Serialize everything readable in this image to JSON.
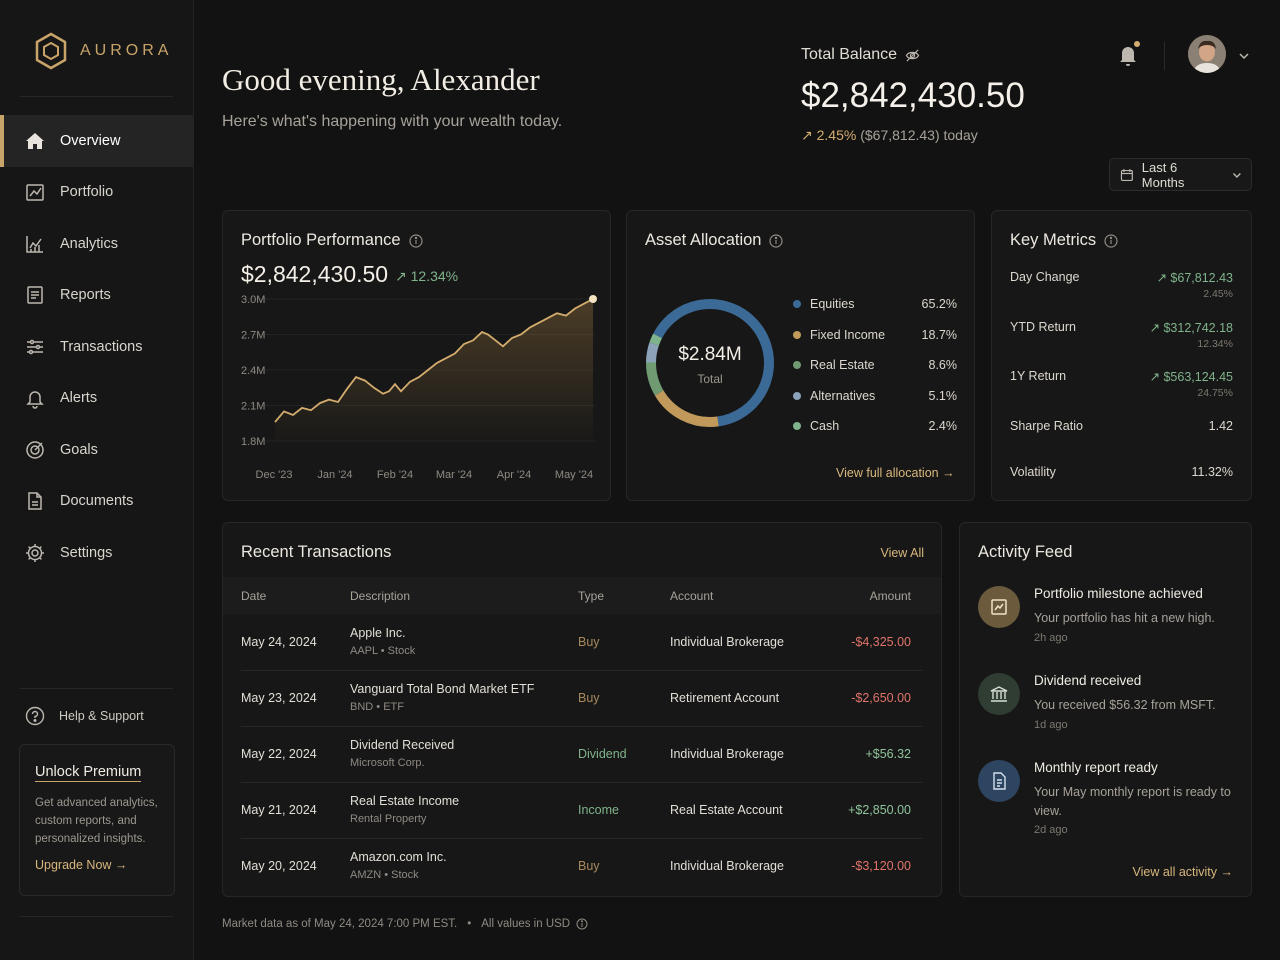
{
  "brand": {
    "name": "AURORA",
    "logo_icon": "hexagon-logo-icon"
  },
  "nav": {
    "items": [
      {
        "label": "Overview",
        "icon": "home-icon",
        "active": true
      },
      {
        "label": "Portfolio",
        "icon": "portfolio-icon"
      },
      {
        "label": "Analytics",
        "icon": "analytics-icon"
      },
      {
        "label": "Reports",
        "icon": "reports-icon"
      },
      {
        "label": "Transactions",
        "icon": "transactions-icon"
      },
      {
        "label": "Alerts",
        "icon": "bell-icon"
      },
      {
        "label": "Goals",
        "icon": "target-icon"
      },
      {
        "label": "Documents",
        "icon": "document-icon"
      },
      {
        "label": "Settings",
        "icon": "gear-icon"
      }
    ],
    "help": "Help & Support",
    "premium": {
      "title": "Unlock Premium",
      "text": "Get advanced analytics, custom reports, and personalized insights.",
      "cta": "Upgrade Now →"
    }
  },
  "header": {
    "greeting": "Good evening, Alexander",
    "subtitle": "Here's what's happening with your wealth today.",
    "total_balance_label": "Total Balance",
    "total_balance": "$2,842,430.50",
    "change_pct": "↗ 2.45%",
    "change_rest": "($67,812.43) today",
    "range": "Last 6 Months"
  },
  "performance": {
    "title": "Portfolio Performance",
    "value": "$2,842,430.50",
    "change": "↗ 12.34%"
  },
  "chart_data": {
    "type": "line",
    "title": "Portfolio Performance",
    "x_ticks": [
      "Dec '23",
      "Jan '24",
      "Feb '24",
      "Mar '24",
      "Apr '24",
      "May '24"
    ],
    "y_ticks": [
      "3.0M",
      "2.7M",
      "2.4M",
      "2.1M",
      "1.8M"
    ],
    "ylim": [
      1.8,
      3.0
    ],
    "xlim": [
      0,
      5.3
    ],
    "series": [
      {
        "color": "#d4ad6e",
        "x": [
          0,
          0.15,
          0.3,
          0.45,
          0.6,
          0.75,
          0.9,
          1.05,
          1.2,
          1.35,
          1.5,
          1.65,
          1.8,
          1.9,
          2.0,
          2.1,
          2.25,
          2.4,
          2.55,
          2.7,
          2.85,
          3.0,
          3.15,
          3.3,
          3.45,
          3.55,
          3.65,
          3.8,
          3.95,
          4.1,
          4.25,
          4.4,
          4.55,
          4.7,
          4.85,
          5.0,
          5.15,
          5.3
        ],
        "y": [
          1.96,
          2.05,
          2.02,
          2.08,
          2.06,
          2.12,
          2.15,
          2.13,
          2.24,
          2.34,
          2.31,
          2.25,
          2.2,
          2.22,
          2.28,
          2.22,
          2.3,
          2.34,
          2.4,
          2.46,
          2.5,
          2.54,
          2.62,
          2.65,
          2.72,
          2.7,
          2.66,
          2.6,
          2.67,
          2.7,
          2.76,
          2.8,
          2.84,
          2.88,
          2.86,
          2.92,
          2.96,
          3.0
        ]
      }
    ]
  },
  "allocation": {
    "title": "Asset Allocation",
    "center_value": "$2.84M",
    "center_label": "Total",
    "items": [
      {
        "name": "Equities",
        "pct": "65.2%",
        "value": 65.2,
        "color": "#3b6a97"
      },
      {
        "name": "Fixed Income",
        "pct": "18.7%",
        "value": 18.7,
        "color": "#c19a5b"
      },
      {
        "name": "Real Estate",
        "pct": "8.6%",
        "value": 8.6,
        "color": "#6f9a72"
      },
      {
        "name": "Alternatives",
        "pct": "5.1%",
        "value": 5.1,
        "color": "#8ba3b8"
      },
      {
        "name": "Cash",
        "pct": "2.4%",
        "value": 2.4,
        "color": "#7fb38b"
      }
    ],
    "link": "View full allocation →"
  },
  "metrics": {
    "title": "Key Metrics",
    "rows": [
      {
        "label": "Day Change",
        "value": "↗ $67,812.43",
        "sub": "2.45%"
      },
      {
        "label": "YTD Return",
        "value": "↗ $312,742.18",
        "sub": "12.34%"
      },
      {
        "label": "1Y Return",
        "value": "↗ $563,124.45",
        "sub": "24.75%"
      },
      {
        "label": "Sharpe Ratio",
        "value": "1.42",
        "sub": ""
      },
      {
        "label": "Volatility",
        "value": "11.32%",
        "sub": ""
      }
    ]
  },
  "transactions": {
    "title": "Recent Transactions",
    "view_all": "View All",
    "columns": [
      "Date",
      "Description",
      "Type",
      "Account",
      "Amount"
    ],
    "rows": [
      {
        "date": "May 24, 2024",
        "desc": "Apple Inc.",
        "sub": "AAPL • Stock",
        "type": "Buy",
        "account": "Individual Brokerage",
        "amount": "-$4,325.00",
        "neg": true
      },
      {
        "date": "May 23, 2024",
        "desc": "Vanguard Total Bond Market ETF",
        "sub": "BND • ETF",
        "type": "Buy",
        "account": "Retirement Account",
        "amount": "-$2,650.00",
        "neg": true
      },
      {
        "date": "May 22, 2024",
        "desc": "Dividend Received",
        "sub": "Microsoft Corp.",
        "type": "Dividend",
        "account": "Individual Brokerage",
        "amount": "+$56.32",
        "neg": false
      },
      {
        "date": "May 21, 2024",
        "desc": "Real Estate Income",
        "sub": "Rental Property",
        "type": "Income",
        "account": "Real Estate Account",
        "amount": "+$2,850.00",
        "neg": false
      },
      {
        "date": "May 20, 2024",
        "desc": "Amazon.com Inc.",
        "sub": "AMZN • Stock",
        "type": "Buy",
        "account": "Individual Brokerage",
        "amount": "-$3,120.00",
        "neg": true
      }
    ]
  },
  "activity": {
    "title": "Activity Feed",
    "items": [
      {
        "title": "Portfolio milestone achieved",
        "desc": "Your portfolio has hit a new high.",
        "time": "2h ago",
        "icon": "chart-up-icon",
        "bg": "#6b5a3c"
      },
      {
        "title": "Dividend received",
        "desc": "You received $56.32 from MSFT.",
        "time": "1d ago",
        "icon": "bank-icon",
        "bg": "#2f3d33"
      },
      {
        "title": "Monthly report ready",
        "desc": "Your May monthly report is ready to view.",
        "time": "2d ago",
        "icon": "report-icon",
        "bg": "#2d4560"
      }
    ],
    "link": "View all activity →"
  },
  "footer": {
    "market": "Market data as of May 24, 2024 7:00 PM EST.",
    "values": "All values in USD"
  }
}
